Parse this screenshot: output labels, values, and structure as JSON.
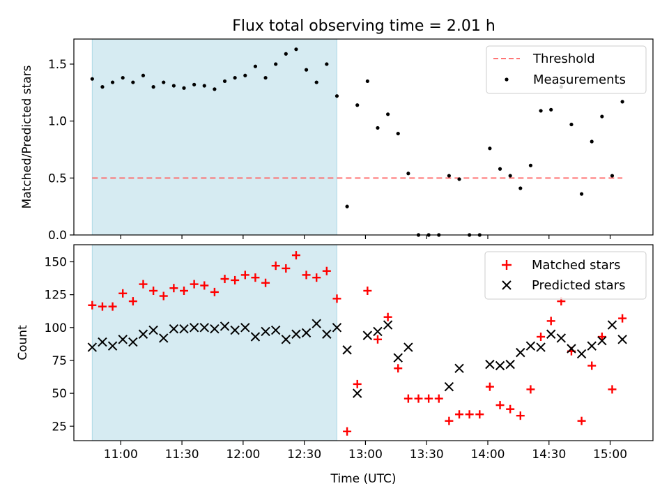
{
  "title": "Flux total observing time = 2.01 h",
  "colors": {
    "shade": "#add8e6",
    "threshold": "#ff6666",
    "measurement": "#000000",
    "matched": "#ff0000",
    "predicted": "#000000"
  },
  "chart_data": [
    {
      "type": "scatter",
      "name": "top",
      "ylabel": "Matched/Predicted stars",
      "xlabel": "",
      "xlim": [
        "10:37",
        "15:21"
      ],
      "ylim": [
        0,
        1.72
      ],
      "yticks": [
        0.0,
        0.5,
        1.0,
        1.5
      ],
      "ytick_labels": [
        "0.0",
        "0.5",
        "1.0",
        "1.5"
      ],
      "shaded_region": [
        "10:46",
        "12:46"
      ],
      "threshold": {
        "label": "Threshold",
        "value": 0.5,
        "x": [
          "10:46",
          "15:06"
        ]
      },
      "series": [
        {
          "name": "Measurements",
          "x": [
            "10:46",
            "10:51",
            "10:56",
            "11:01",
            "11:06",
            "11:11",
            "11:16",
            "11:21",
            "11:26",
            "11:31",
            "11:36",
            "11:41",
            "11:46",
            "11:51",
            "11:56",
            "12:01",
            "12:06",
            "12:11",
            "12:16",
            "12:21",
            "12:26",
            "12:31",
            "12:36",
            "12:41",
            "12:46",
            "12:51",
            "12:56",
            "13:01",
            "13:06",
            "13:11",
            "13:16",
            "13:21",
            "13:26",
            "13:31",
            "13:36",
            "13:41",
            "13:46",
            "13:51",
            "13:56",
            "14:01",
            "14:06",
            "14:11",
            "14:16",
            "14:21",
            "14:26",
            "14:31",
            "14:36",
            "14:41",
            "14:46",
            "14:51",
            "14:56",
            "15:01",
            "15:06"
          ],
          "y": [
            1.37,
            1.3,
            1.34,
            1.38,
            1.34,
            1.4,
            1.3,
            1.34,
            1.31,
            1.29,
            1.32,
            1.31,
            1.28,
            1.35,
            1.38,
            1.4,
            1.48,
            1.38,
            1.5,
            1.59,
            1.63,
            1.45,
            1.34,
            1.5,
            1.22,
            0.25,
            1.14,
            1.35,
            0.94,
            1.06,
            0.89,
            0.54,
            0.0,
            0.0,
            0.0,
            0.52,
            0.49,
            0.0,
            0.0,
            0.76,
            0.58,
            0.52,
            0.41,
            0.61,
            1.09,
            1.1,
            1.3,
            0.97,
            0.36,
            0.82,
            1.04,
            0.52,
            1.17
          ]
        }
      ],
      "legend": [
        "Threshold",
        "Measurements"
      ]
    },
    {
      "type": "scatter",
      "name": "bottom",
      "ylabel": "Count",
      "xlabel": "Time (UTC)",
      "xlim": [
        "10:37",
        "15:21"
      ],
      "ylim": [
        14,
        163
      ],
      "yticks": [
        25,
        50,
        75,
        100,
        125,
        150
      ],
      "ytick_labels": [
        "25",
        "50",
        "75",
        "100",
        "125",
        "150"
      ],
      "xticks": [
        "11:00",
        "11:30",
        "12:00",
        "12:30",
        "13:00",
        "13:30",
        "14:00",
        "14:30",
        "15:00"
      ],
      "xtick_labels": [
        "11:00",
        "11:30",
        "12:00",
        "12:30",
        "13:00",
        "13:30",
        "14:00",
        "14:30",
        "15:00"
      ],
      "shaded_region": [
        "10:46",
        "12:46"
      ],
      "series": [
        {
          "name": "Matched stars",
          "x": [
            "10:46",
            "10:51",
            "10:56",
            "11:01",
            "11:06",
            "11:11",
            "11:16",
            "11:21",
            "11:26",
            "11:31",
            "11:36",
            "11:41",
            "11:46",
            "11:51",
            "11:56",
            "12:01",
            "12:06",
            "12:11",
            "12:16",
            "12:21",
            "12:26",
            "12:31",
            "12:36",
            "12:41",
            "12:46",
            "12:51",
            "12:56",
            "13:01",
            "13:06",
            "13:11",
            "13:16",
            "13:21",
            "13:26",
            "13:31",
            "13:36",
            "13:41",
            "13:46",
            "13:51",
            "13:56",
            "14:01",
            "14:06",
            "14:11",
            "14:16",
            "14:21",
            "14:26",
            "14:31",
            "14:36",
            "14:41",
            "14:46",
            "14:51",
            "14:56",
            "15:01",
            "15:06"
          ],
          "y": [
            117,
            116,
            116,
            126,
            120,
            133,
            128,
            124,
            130,
            128,
            133,
            132,
            127,
            137,
            136,
            140,
            138,
            134,
            147,
            145,
            155,
            140,
            138,
            143,
            122,
            21,
            57,
            128,
            91,
            108,
            69,
            46,
            46,
            46,
            46,
            29,
            34,
            34,
            34,
            55,
            41,
            38,
            33,
            53,
            93,
            105,
            120,
            82,
            29,
            71,
            93,
            53,
            107
          ]
        },
        {
          "name": "Predicted stars",
          "x": [
            "10:46",
            "10:51",
            "10:56",
            "11:01",
            "11:06",
            "11:11",
            "11:16",
            "11:21",
            "11:26",
            "11:31",
            "11:36",
            "11:41",
            "11:46",
            "11:51",
            "11:56",
            "12:01",
            "12:06",
            "12:11",
            "12:16",
            "12:21",
            "12:26",
            "12:31",
            "12:36",
            "12:41",
            "12:46",
            "12:51",
            "12:56",
            "13:01",
            "13:06",
            "13:11",
            "13:16",
            "13:21",
            "13:41",
            "13:46",
            "14:01",
            "14:06",
            "14:11",
            "14:16",
            "14:21",
            "14:26",
            "14:31",
            "14:36",
            "14:41",
            "14:46",
            "14:51",
            "14:56",
            "15:01",
            "15:06"
          ],
          "y": [
            85,
            89,
            86,
            91,
            89,
            95,
            98,
            92,
            99,
            99,
            100,
            100,
            99,
            101,
            98,
            100,
            93,
            97,
            98,
            91,
            95,
            96,
            103,
            95,
            100,
            83,
            50,
            94,
            97,
            102,
            77,
            85,
            55,
            69,
            72,
            71,
            72,
            81,
            86,
            85,
            95,
            92,
            84,
            80,
            86,
            90,
            102,
            91
          ]
        }
      ],
      "legend": [
        "Matched stars",
        "Predicted stars"
      ]
    }
  ]
}
